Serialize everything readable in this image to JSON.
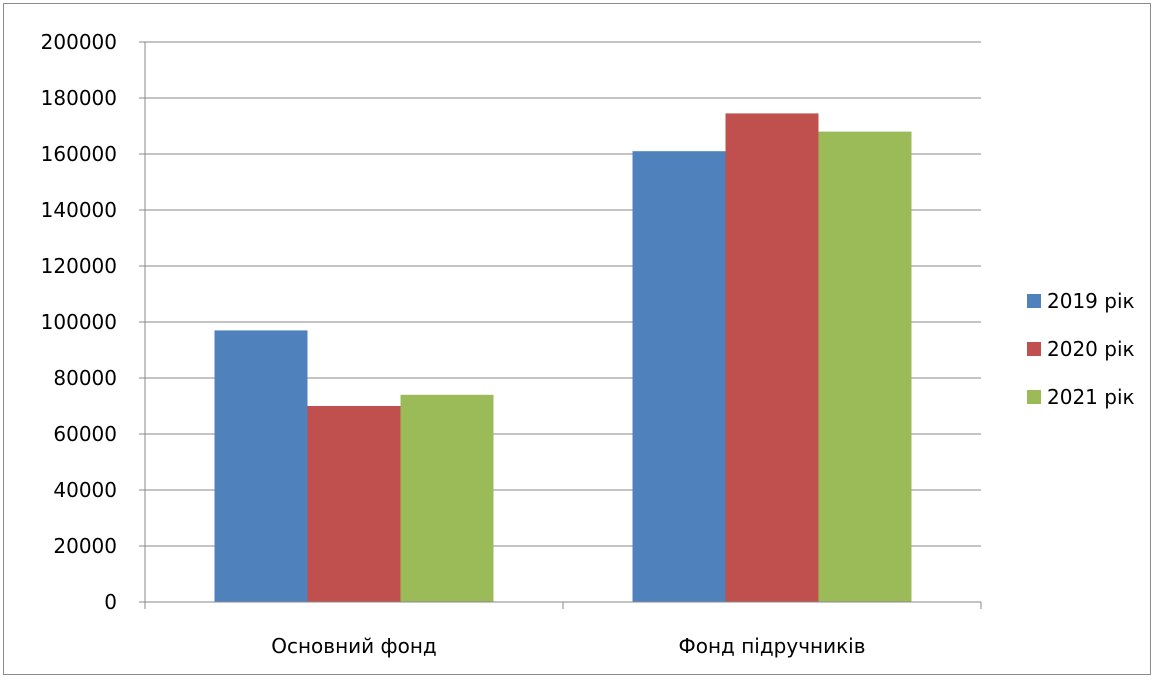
{
  "chart_data": {
    "type": "bar",
    "title": "",
    "xlabel": "",
    "ylabel": "",
    "categories": [
      "Основний фонд",
      "Фонд підручників"
    ],
    "series": [
      {
        "name": "2019 рік",
        "color": "#4f81bd",
        "values": [
          97000,
          161000
        ]
      },
      {
        "name": "2020 рік",
        "color": "#c0504d",
        "values": [
          70000,
          174500
        ]
      },
      {
        "name": "2021 рік",
        "color": "#9bbb59",
        "values": [
          74000,
          168000
        ]
      }
    ],
    "ylim": [
      0,
      200000
    ],
    "yticks": [
      0,
      20000,
      40000,
      60000,
      80000,
      100000,
      120000,
      140000,
      160000,
      180000,
      200000
    ],
    "grid": true,
    "legend": "right"
  }
}
